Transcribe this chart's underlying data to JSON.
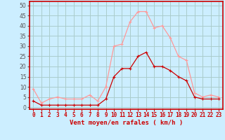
{
  "x": [
    0,
    1,
    2,
    3,
    4,
    5,
    6,
    7,
    8,
    9,
    10,
    11,
    12,
    13,
    14,
    15,
    16,
    17,
    18,
    19,
    20,
    21,
    22,
    23
  ],
  "vent_moyen": [
    3,
    1,
    1,
    1,
    1,
    1,
    1,
    1,
    1,
    4,
    15,
    19,
    19,
    25,
    27,
    20,
    20,
    18,
    15,
    13,
    5,
    4,
    4,
    4
  ],
  "rafales": [
    9,
    2,
    4,
    5,
    4,
    4,
    4,
    6,
    3,
    10,
    30,
    31,
    42,
    47,
    47,
    39,
    40,
    34,
    25,
    23,
    7,
    5,
    6,
    5
  ],
  "bg_color": "#cceeff",
  "grid_color": "#aacccc",
  "line_moyen_color": "#cc0000",
  "line_rafales_color": "#ff9999",
  "xlabel": "Vent moyen/en rafales ( km/h )",
  "ylabel_ticks": [
    0,
    5,
    10,
    15,
    20,
    25,
    30,
    35,
    40,
    45,
    50
  ],
  "ylim": [
    -1,
    52
  ],
  "xlim": [
    -0.5,
    23.5
  ],
  "xlabel_fontsize": 6.5,
  "tick_fontsize": 5.5
}
